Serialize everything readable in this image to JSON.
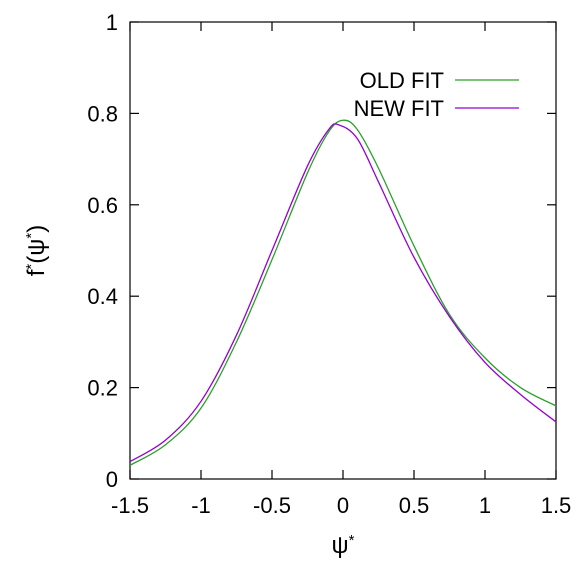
{
  "chart_data": {
    "type": "line",
    "xlabel": "ψ*",
    "ylabel": "f*(ψ*)",
    "xlim": [
      -1.5,
      1.5
    ],
    "ylim": [
      0,
      1
    ],
    "x_ticks": [
      "-1.5",
      "-1",
      "-0.5",
      "0",
      "0.5",
      "1",
      "1.5"
    ],
    "y_ticks": [
      "0",
      "0.2",
      "0.4",
      "0.6",
      "0.8",
      "1"
    ],
    "grid": false,
    "legend_position": "top-right",
    "series": [
      {
        "name": "OLD FIT",
        "color": "#2ca02c",
        "x": [
          -1.5,
          -1.25,
          -1.0,
          -0.75,
          -0.5,
          -0.25,
          -0.1,
          0.0,
          0.1,
          0.25,
          0.5,
          0.75,
          1.0,
          1.25,
          1.5
        ],
        "y": [
          0.03,
          0.075,
          0.155,
          0.3,
          0.48,
          0.67,
          0.76,
          0.785,
          0.765,
          0.68,
          0.51,
          0.36,
          0.265,
          0.2,
          0.16
        ]
      },
      {
        "name": "NEW FIT",
        "color": "#9400d3",
        "x": [
          -1.5,
          -1.25,
          -1.0,
          -0.75,
          -0.5,
          -0.25,
          -0.1,
          -0.03,
          0.1,
          0.25,
          0.5,
          0.75,
          1.0,
          1.25,
          1.5
        ],
        "y": [
          0.038,
          0.085,
          0.17,
          0.315,
          0.5,
          0.685,
          0.765,
          0.775,
          0.745,
          0.65,
          0.485,
          0.355,
          0.255,
          0.185,
          0.125
        ]
      }
    ]
  }
}
